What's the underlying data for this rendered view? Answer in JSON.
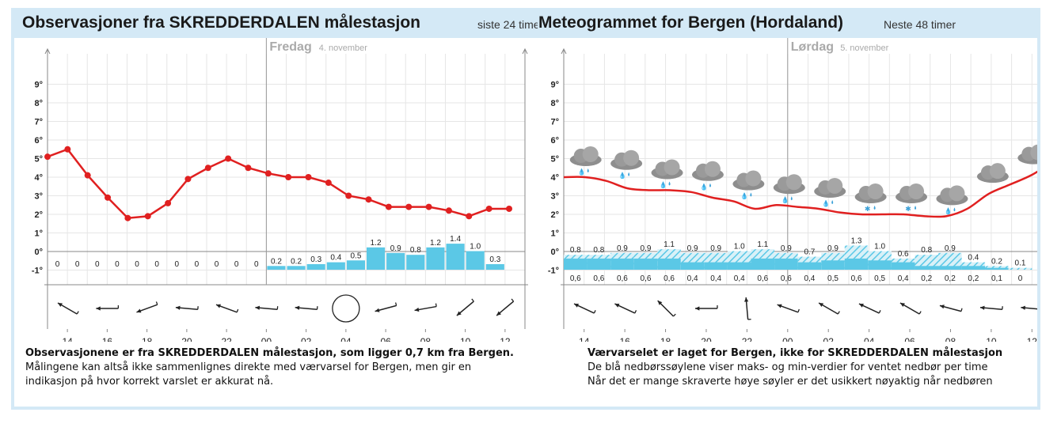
{
  "header": {
    "left_title": "Observasjoner fra SKREDDERDALEN målestasjon",
    "left_subtitle": "siste 24 timer",
    "right_title": "Meteogrammet for Bergen (Hordaland)",
    "right_subtitle": "Neste 48 timer"
  },
  "colors": {
    "temperature": "#e02020",
    "precip": "#5bc8e6",
    "header_bg": "#d4e9f6",
    "day_label": "#aaaaaa"
  },
  "chart_data": [
    {
      "type": "line",
      "name": "observations",
      "day_label": "Fredag",
      "day_date": "4. november",
      "y_tick_labels": [
        "-1°",
        "0°",
        "1°",
        "2°",
        "3°",
        "4°",
        "5°",
        "6°",
        "7°",
        "8°",
        "9°"
      ],
      "ylim": [
        -1,
        9
      ],
      "x_tick_labels": [
        "14",
        "16",
        "18",
        "20",
        "22",
        "00",
        "02",
        "04",
        "06",
        "08",
        "10",
        "12"
      ],
      "temperature": [
        5.1,
        5.5,
        4.1,
        2.9,
        1.8,
        1.9,
        2.6,
        3.9,
        4.5,
        5.0,
        4.5,
        4.2,
        4.0,
        4.0,
        3.7,
        3.0,
        2.8,
        2.4,
        2.4,
        2.4,
        2.2,
        1.9,
        2.3,
        2.3
      ],
      "precip_labels": [
        "0",
        "0",
        "0",
        "0",
        "0",
        "0",
        "0",
        "0",
        "0",
        "0",
        "0",
        "0.2",
        "0.2",
        "0.3",
        "0.4",
        "0.5",
        "1.2",
        "0.9",
        "0.8",
        "1.2",
        "1.4",
        "1.0",
        "0.3"
      ],
      "wind_icons": [
        "arrow-wsw",
        "arrow-w",
        "arrow-nw",
        "arrow-w",
        "arrow-wsw",
        "arrow-w",
        "arrow-w",
        "calm-circle",
        "arrow-wnw",
        "arrow-wnw",
        "arrow-nw",
        "arrow-nw-long"
      ],
      "wind_angles": [
        -150,
        -180,
        160,
        -175,
        -160,
        -175,
        -175,
        null,
        165,
        170,
        140,
        140
      ],
      "footer": {
        "bold": "Observasjonene er fra SKREDDERDALEN målestasjon, som ligger 0,7 km fra Bergen.",
        "line1": "Målingene kan altså ikke sammenlignes direkte med værvarsel for Bergen, men gir en",
        "line2": "indikasjon på hvor korrekt varslet er akkurat nå."
      }
    },
    {
      "type": "line",
      "name": "meteogram",
      "day_label": "Lørdag",
      "day_date": "5. november",
      "y_tick_labels": [
        "-1°",
        "0°",
        "1°",
        "2°",
        "3°",
        "4°",
        "5°",
        "6°",
        "7°",
        "8°",
        "9°"
      ],
      "ylim": [
        -1,
        9
      ],
      "x_tick_labels": [
        "14",
        "16",
        "18",
        "20",
        "22",
        "00",
        "02",
        "04",
        "06",
        "08",
        "10",
        "12"
      ],
      "temperature": [
        4.0,
        4.0,
        3.8,
        3.4,
        3.3,
        3.3,
        3.2,
        2.9,
        2.7,
        2.3,
        2.5,
        2.4,
        2.3,
        2.1,
        2.0,
        2.0,
        2.0,
        1.9,
        1.9,
        2.3,
        3.1,
        3.6,
        4.1,
        4.8
      ],
      "precip_max_labels": [
        "0.8",
        "0.8",
        "0.9",
        "0.9",
        "1.1",
        "0.9",
        "0.9",
        "1.0",
        "1.1",
        "0.9",
        "0.7",
        "0.9",
        "1.3",
        "1.0",
        "0.6",
        "0.8",
        "0.9",
        "0.4",
        "0.2",
        "0.1"
      ],
      "precip_min_labels": [
        "0,6",
        "0,6",
        "0,6",
        "0,6",
        "0,6",
        "0,4",
        "0,4",
        "0,4",
        "0,6",
        "0,6",
        "0,4",
        "0,5",
        "0,6",
        "0,5",
        "0,4",
        "0,2",
        "0,2",
        "0,2",
        "0,1",
        "0"
      ],
      "weather_icons": [
        "cloud-rain",
        "cloud-rain",
        "cloud-rain",
        "cloud-rain",
        "cloud-rain",
        "cloud-rain",
        "cloud-rain",
        "cloud-snow",
        "cloud-snow",
        "cloud-rain",
        "cloud",
        "cloud"
      ],
      "wind_icons": [
        "arrow-wsw",
        "arrow-wsw",
        "arrow-sw",
        "arrow-w",
        "arrow-n",
        "arrow-wsw",
        "arrow-wsw",
        "arrow-wsw",
        "arrow-wsw",
        "arrow-wsw",
        "arrow-w",
        "arrow-w"
      ],
      "wind_angles": [
        -155,
        -155,
        -135,
        -180,
        -95,
        -160,
        -150,
        -155,
        -150,
        -165,
        -175,
        -175
      ],
      "footer": {
        "bold": "Værvarselet er laget for Bergen, ikke for SKREDDERDALEN målestasjon",
        "line1": "De blå nedbørssøylene viser maks- og min-verdier for ventet nedbør per time",
        "line2": "Når det er mange skraverte høye søyler er det usikkert nøyaktig når nedbøren"
      }
    }
  ]
}
